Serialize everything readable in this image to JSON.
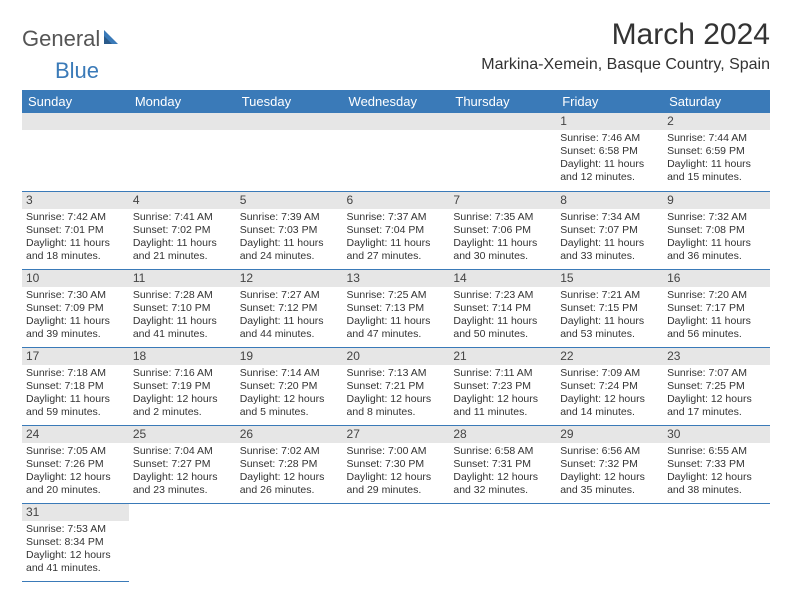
{
  "logo": {
    "text1": "General",
    "text2": "Blue"
  },
  "title": "March 2024",
  "location": "Markina-Xemein, Basque Country, Spain",
  "colors": {
    "header_bg": "#3a7ab8",
    "header_text": "#ffffff",
    "daynum_bg": "#e6e6e6",
    "border": "#3a7ab8",
    "page_bg": "#ffffff",
    "text": "#333333"
  },
  "typography": {
    "title_fontsize": 30,
    "location_fontsize": 16,
    "dayheader_fontsize": 13,
    "cell_fontsize": 10.5
  },
  "day_headers": [
    "Sunday",
    "Monday",
    "Tuesday",
    "Wednesday",
    "Thursday",
    "Friday",
    "Saturday"
  ],
  "weeks": [
    [
      null,
      null,
      null,
      null,
      null,
      {
        "n": "1",
        "sunrise": "Sunrise: 7:46 AM",
        "sunset": "Sunset: 6:58 PM",
        "daylight": "Daylight: 11 hours and 12 minutes."
      },
      {
        "n": "2",
        "sunrise": "Sunrise: 7:44 AM",
        "sunset": "Sunset: 6:59 PM",
        "daylight": "Daylight: 11 hours and 15 minutes."
      }
    ],
    [
      {
        "n": "3",
        "sunrise": "Sunrise: 7:42 AM",
        "sunset": "Sunset: 7:01 PM",
        "daylight": "Daylight: 11 hours and 18 minutes."
      },
      {
        "n": "4",
        "sunrise": "Sunrise: 7:41 AM",
        "sunset": "Sunset: 7:02 PM",
        "daylight": "Daylight: 11 hours and 21 minutes."
      },
      {
        "n": "5",
        "sunrise": "Sunrise: 7:39 AM",
        "sunset": "Sunset: 7:03 PM",
        "daylight": "Daylight: 11 hours and 24 minutes."
      },
      {
        "n": "6",
        "sunrise": "Sunrise: 7:37 AM",
        "sunset": "Sunset: 7:04 PM",
        "daylight": "Daylight: 11 hours and 27 minutes."
      },
      {
        "n": "7",
        "sunrise": "Sunrise: 7:35 AM",
        "sunset": "Sunset: 7:06 PM",
        "daylight": "Daylight: 11 hours and 30 minutes."
      },
      {
        "n": "8",
        "sunrise": "Sunrise: 7:34 AM",
        "sunset": "Sunset: 7:07 PM",
        "daylight": "Daylight: 11 hours and 33 minutes."
      },
      {
        "n": "9",
        "sunrise": "Sunrise: 7:32 AM",
        "sunset": "Sunset: 7:08 PM",
        "daylight": "Daylight: 11 hours and 36 minutes."
      }
    ],
    [
      {
        "n": "10",
        "sunrise": "Sunrise: 7:30 AM",
        "sunset": "Sunset: 7:09 PM",
        "daylight": "Daylight: 11 hours and 39 minutes."
      },
      {
        "n": "11",
        "sunrise": "Sunrise: 7:28 AM",
        "sunset": "Sunset: 7:10 PM",
        "daylight": "Daylight: 11 hours and 41 minutes."
      },
      {
        "n": "12",
        "sunrise": "Sunrise: 7:27 AM",
        "sunset": "Sunset: 7:12 PM",
        "daylight": "Daylight: 11 hours and 44 minutes."
      },
      {
        "n": "13",
        "sunrise": "Sunrise: 7:25 AM",
        "sunset": "Sunset: 7:13 PM",
        "daylight": "Daylight: 11 hours and 47 minutes."
      },
      {
        "n": "14",
        "sunrise": "Sunrise: 7:23 AM",
        "sunset": "Sunset: 7:14 PM",
        "daylight": "Daylight: 11 hours and 50 minutes."
      },
      {
        "n": "15",
        "sunrise": "Sunrise: 7:21 AM",
        "sunset": "Sunset: 7:15 PM",
        "daylight": "Daylight: 11 hours and 53 minutes."
      },
      {
        "n": "16",
        "sunrise": "Sunrise: 7:20 AM",
        "sunset": "Sunset: 7:17 PM",
        "daylight": "Daylight: 11 hours and 56 minutes."
      }
    ],
    [
      {
        "n": "17",
        "sunrise": "Sunrise: 7:18 AM",
        "sunset": "Sunset: 7:18 PM",
        "daylight": "Daylight: 11 hours and 59 minutes."
      },
      {
        "n": "18",
        "sunrise": "Sunrise: 7:16 AM",
        "sunset": "Sunset: 7:19 PM",
        "daylight": "Daylight: 12 hours and 2 minutes."
      },
      {
        "n": "19",
        "sunrise": "Sunrise: 7:14 AM",
        "sunset": "Sunset: 7:20 PM",
        "daylight": "Daylight: 12 hours and 5 minutes."
      },
      {
        "n": "20",
        "sunrise": "Sunrise: 7:13 AM",
        "sunset": "Sunset: 7:21 PM",
        "daylight": "Daylight: 12 hours and 8 minutes."
      },
      {
        "n": "21",
        "sunrise": "Sunrise: 7:11 AM",
        "sunset": "Sunset: 7:23 PM",
        "daylight": "Daylight: 12 hours and 11 minutes."
      },
      {
        "n": "22",
        "sunrise": "Sunrise: 7:09 AM",
        "sunset": "Sunset: 7:24 PM",
        "daylight": "Daylight: 12 hours and 14 minutes."
      },
      {
        "n": "23",
        "sunrise": "Sunrise: 7:07 AM",
        "sunset": "Sunset: 7:25 PM",
        "daylight": "Daylight: 12 hours and 17 minutes."
      }
    ],
    [
      {
        "n": "24",
        "sunrise": "Sunrise: 7:05 AM",
        "sunset": "Sunset: 7:26 PM",
        "daylight": "Daylight: 12 hours and 20 minutes."
      },
      {
        "n": "25",
        "sunrise": "Sunrise: 7:04 AM",
        "sunset": "Sunset: 7:27 PM",
        "daylight": "Daylight: 12 hours and 23 minutes."
      },
      {
        "n": "26",
        "sunrise": "Sunrise: 7:02 AM",
        "sunset": "Sunset: 7:28 PM",
        "daylight": "Daylight: 12 hours and 26 minutes."
      },
      {
        "n": "27",
        "sunrise": "Sunrise: 7:00 AM",
        "sunset": "Sunset: 7:30 PM",
        "daylight": "Daylight: 12 hours and 29 minutes."
      },
      {
        "n": "28",
        "sunrise": "Sunrise: 6:58 AM",
        "sunset": "Sunset: 7:31 PM",
        "daylight": "Daylight: 12 hours and 32 minutes."
      },
      {
        "n": "29",
        "sunrise": "Sunrise: 6:56 AM",
        "sunset": "Sunset: 7:32 PM",
        "daylight": "Daylight: 12 hours and 35 minutes."
      },
      {
        "n": "30",
        "sunrise": "Sunrise: 6:55 AM",
        "sunset": "Sunset: 7:33 PM",
        "daylight": "Daylight: 12 hours and 38 minutes."
      }
    ],
    [
      {
        "n": "31",
        "sunrise": "Sunrise: 7:53 AM",
        "sunset": "Sunset: 8:34 PM",
        "daylight": "Daylight: 12 hours and 41 minutes."
      },
      null,
      null,
      null,
      null,
      null,
      null
    ]
  ]
}
